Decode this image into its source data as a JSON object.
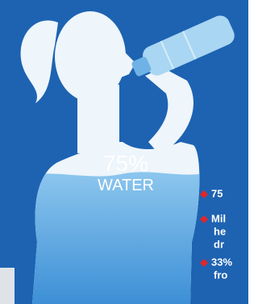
{
  "figure": {
    "fill_label": "75%",
    "fill_sublabel": "WATER"
  },
  "bullets": [
    {
      "lines": [
        "75"
      ]
    },
    {
      "lines": [
        "Mil",
        "he",
        "dr"
      ]
    },
    {
      "lines": [
        "33%",
        "fro"
      ]
    }
  ]
}
